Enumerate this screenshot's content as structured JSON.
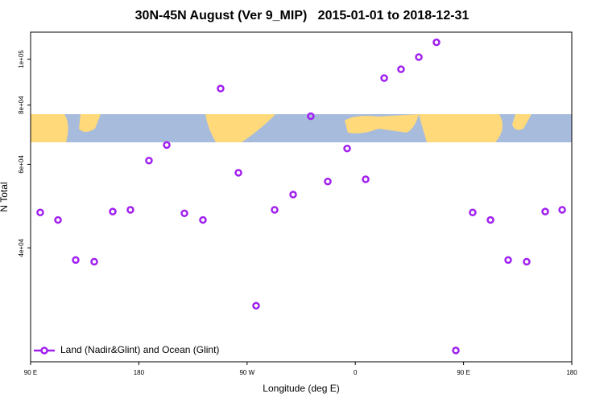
{
  "chart_data": {
    "type": "scatter",
    "title": "30N-45N August (Ver 9_MIP)   2015-01-01 to 2018-12-31",
    "x_label": "Longitude (deg E)",
    "y_label": "N Total",
    "log_y": true,
    "legend_position": "bottom-left",
    "xlim": [
      90,
      540
    ],
    "xticks": [
      {
        "value": 90,
        "label": "90 E"
      },
      {
        "value": 180,
        "label": "180"
      },
      {
        "value": 270,
        "label": "90 W"
      },
      {
        "value": 360,
        "label": "0"
      },
      {
        "value": 450,
        "label": "90 E"
      },
      {
        "value": 540,
        "label": "180"
      }
    ],
    "ylim": [
      23000,
      114000
    ],
    "yticks": [
      {
        "value": 40000,
        "label": "4e+04"
      },
      {
        "value": 60000,
        "label": "6e+04"
      },
      {
        "value": 80000,
        "label": "8e+04"
      },
      {
        "value": 100000,
        "label": "1e+05"
      }
    ],
    "series": [
      {
        "name": "Land (Nadir&Glint) and Ocean (Glint)",
        "color": "#a020f0",
        "x": [
          98,
          112.8,
          127.5,
          142.9,
          158.3,
          173,
          188.4,
          203.2,
          217.9,
          233.3,
          248,
          262.8,
          277.5,
          292.9,
          308.3,
          323,
          337.1,
          353.2,
          368.6,
          384,
          398,
          412.8,
          427.5,
          443.6,
          457.6,
          472.4,
          487.1,
          502.5,
          517.9,
          532
        ],
        "values": [
          47500,
          45800,
          37700,
          37400,
          47700,
          48100,
          61100,
          65900,
          47300,
          45800,
          86700,
          57600,
          30200,
          48100,
          51800,
          75800,
          55200,
          64800,
          55800,
          91200,
          95200,
          101000,
          108500,
          24300,
          47500,
          45800,
          37700,
          37400,
          47700,
          48100
        ]
      }
    ]
  }
}
